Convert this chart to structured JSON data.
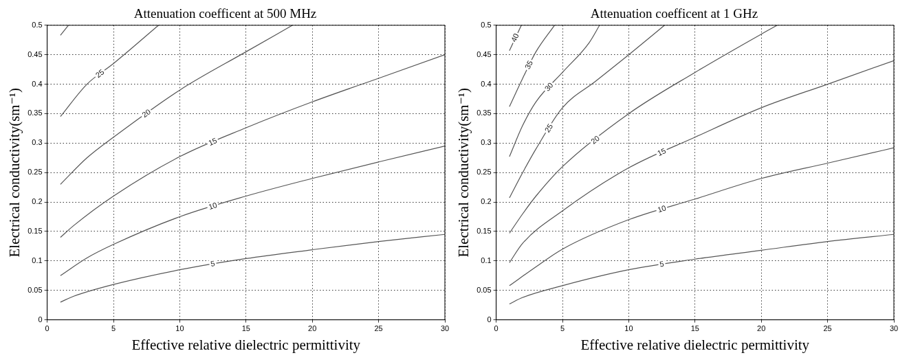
{
  "chart_data": [
    {
      "type": "line",
      "title": "Attenuation coefficent at 500 MHz",
      "xlabel": "Effective relative dielectric permittivity",
      "ylabel": "Electrical conductivity(sm⁻¹)",
      "xlim": [
        0,
        30
      ],
      "ylim": [
        0,
        0.5
      ],
      "xticks": [
        0,
        5,
        10,
        15,
        20,
        25,
        30
      ],
      "yticks": [
        0,
        0.05,
        0.1,
        0.15,
        0.2,
        0.25,
        0.3,
        0.35,
        0.4,
        0.45,
        0.5
      ],
      "grid": true,
      "marker": "none",
      "series": [
        {
          "name": "5",
          "color": "#555555",
          "x": [
            1,
            2,
            5,
            10,
            15,
            20,
            25,
            30
          ],
          "values": [
            0.03,
            0.04,
            0.06,
            0.085,
            0.104,
            0.119,
            0.133,
            0.145
          ]
        },
        {
          "name": "10",
          "color": "#555555",
          "x": [
            1,
            3,
            5,
            10,
            15,
            20,
            25,
            30
          ],
          "values": [
            0.075,
            0.105,
            0.128,
            0.175,
            0.21,
            0.24,
            0.268,
            0.295
          ]
        },
        {
          "name": "15",
          "color": "#555555",
          "x": [
            1,
            2,
            5,
            10,
            15,
            20,
            25,
            30
          ],
          "values": [
            0.14,
            0.16,
            0.21,
            0.277,
            0.326,
            0.37,
            0.41,
            0.45
          ]
        },
        {
          "name": "20",
          "color": "#555555",
          "x": [
            1,
            3,
            5,
            10,
            15,
            18.5
          ],
          "values": [
            0.23,
            0.275,
            0.31,
            0.39,
            0.455,
            0.5
          ]
        },
        {
          "name": "25",
          "color": "#555555",
          "x": [
            1,
            3,
            5,
            8.4
          ],
          "values": [
            0.345,
            0.4,
            0.435,
            0.5
          ]
        },
        {
          "color": "#555555",
          "x": [
            1,
            1.6
          ],
          "values": [
            0.483,
            0.5
          ]
        }
      ]
    },
    {
      "type": "line",
      "title": "Attenuation coefficent at 1 GHz",
      "xlabel": "Effective relative dielectric permittivity",
      "ylabel": "Electrical conductivity(sm⁻¹)",
      "xlim": [
        0,
        30
      ],
      "ylim": [
        0,
        0.5
      ],
      "xticks": [
        0,
        5,
        10,
        15,
        20,
        25,
        30
      ],
      "yticks": [
        0,
        0.05,
        0.1,
        0.15,
        0.2,
        0.25,
        0.3,
        0.35,
        0.4,
        0.45,
        0.5
      ],
      "grid": true,
      "marker": "none",
      "series": [
        {
          "name": "5",
          "color": "#555555",
          "x": [
            1,
            2,
            5,
            10,
            15,
            20,
            25,
            30
          ],
          "values": [
            0.027,
            0.038,
            0.058,
            0.085,
            0.103,
            0.118,
            0.133,
            0.145
          ]
        },
        {
          "name": "10",
          "color": "#555555",
          "x": [
            1,
            3,
            5,
            10,
            15,
            20,
            25,
            30
          ],
          "values": [
            0.058,
            0.09,
            0.12,
            0.17,
            0.205,
            0.24,
            0.266,
            0.292
          ]
        },
        {
          "name": "15",
          "color": "#555555",
          "x": [
            1,
            2,
            5,
            10,
            15,
            20,
            25,
            30
          ],
          "values": [
            0.097,
            0.13,
            0.185,
            0.258,
            0.31,
            0.36,
            0.4,
            0.44
          ]
        },
        {
          "name": "20",
          "color": "#555555",
          "x": [
            1,
            2,
            3,
            5,
            10,
            15,
            20,
            21.2
          ],
          "values": [
            0.147,
            0.18,
            0.21,
            0.26,
            0.35,
            0.42,
            0.485,
            0.5
          ]
        },
        {
          "name": "25",
          "color": "#555555",
          "x": [
            1,
            2,
            3,
            5,
            7.5,
            10,
            12.7
          ],
          "values": [
            0.207,
            0.25,
            0.29,
            0.36,
            0.405,
            0.45,
            0.5
          ]
        },
        {
          "name": "30",
          "color": "#555555",
          "x": [
            1,
            2,
            3,
            5,
            7,
            7.8
          ],
          "values": [
            0.277,
            0.33,
            0.37,
            0.42,
            0.47,
            0.5
          ]
        },
        {
          "name": "35",
          "color": "#555555",
          "x": [
            1,
            2,
            3,
            4.4
          ],
          "values": [
            0.362,
            0.41,
            0.455,
            0.5
          ]
        },
        {
          "name": "40",
          "color": "#555555",
          "x": [
            1,
            1.9
          ],
          "values": [
            0.457,
            0.5
          ]
        }
      ]
    }
  ]
}
